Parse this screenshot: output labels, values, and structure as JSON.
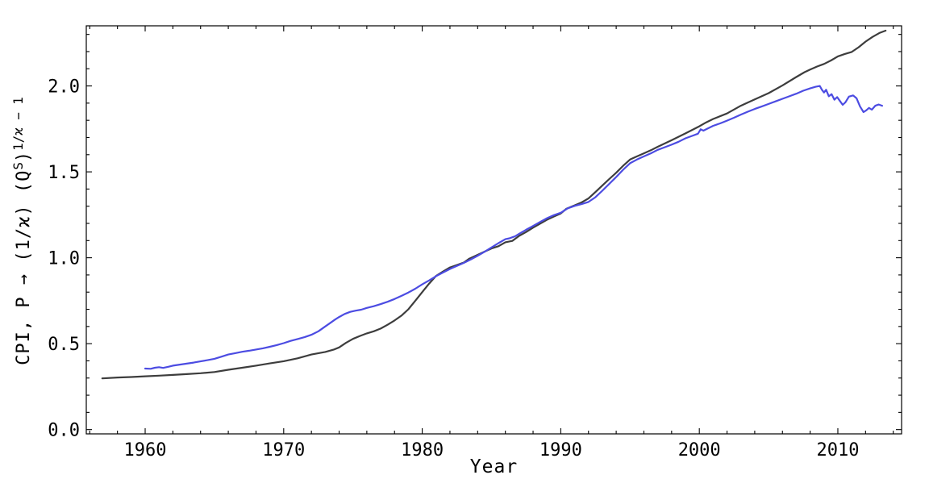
{
  "chart_data": {
    "type": "line",
    "title": "",
    "xlabel": "Year",
    "ylabel": "CPI, P → (1/ϰ) (Q^S)^(1/ϰ − 1)",
    "ylabel_segments": [
      {
        "text": "CPI, P → (1/ϰ) (Q",
        "sup": false
      },
      {
        "text": "S",
        "sup": true
      },
      {
        "text": ")",
        "sup": false
      },
      {
        "text": "1/ϰ − 1",
        "sup": true
      }
    ],
    "xlim": [
      1955.75,
      2014.6
    ],
    "ylim": [
      -0.025,
      2.35
    ],
    "grid": false,
    "legend": "none",
    "frame": true,
    "x_ticks": [
      1960,
      1970,
      1980,
      1990,
      2000,
      2010
    ],
    "x_tick_labels": [
      "1960",
      "1970",
      "1980",
      "1990",
      "2000",
      "2010"
    ],
    "x_minor_step": 2,
    "y_ticks": [
      0.0,
      0.5,
      1.0,
      1.5,
      2.0
    ],
    "y_tick_labels": [
      "0.0",
      "0.5",
      "1.0",
      "1.5",
      "2.0"
    ],
    "y_minor_step": 0.1,
    "axis_color": "#000000",
    "series": [
      {
        "name": "dark-series",
        "color": "#3d3d3d",
        "width": 2.2,
        "points": [
          [
            1956.9,
            0.298
          ],
          [
            1958,
            0.303
          ],
          [
            1959,
            0.306
          ],
          [
            1960,
            0.31
          ],
          [
            1961,
            0.314
          ],
          [
            1962,
            0.318
          ],
          [
            1963,
            0.323
          ],
          [
            1964,
            0.328
          ],
          [
            1965,
            0.335
          ],
          [
            1966,
            0.348
          ],
          [
            1967,
            0.36
          ],
          [
            1968,
            0.372
          ],
          [
            1969,
            0.385
          ],
          [
            1970,
            0.398
          ],
          [
            1971,
            0.415
          ],
          [
            1972,
            0.437
          ],
          [
            1973,
            0.452
          ],
          [
            1973.6,
            0.465
          ],
          [
            1974,
            0.478
          ],
          [
            1974.5,
            0.505
          ],
          [
            1975,
            0.528
          ],
          [
            1975.5,
            0.545
          ],
          [
            1976,
            0.56
          ],
          [
            1976.5,
            0.572
          ],
          [
            1977,
            0.588
          ],
          [
            1977.5,
            0.61
          ],
          [
            1978,
            0.635
          ],
          [
            1978.5,
            0.663
          ],
          [
            1979,
            0.7
          ],
          [
            1979.5,
            0.75
          ],
          [
            1980,
            0.8
          ],
          [
            1980.5,
            0.85
          ],
          [
            1981,
            0.895
          ],
          [
            1981.5,
            0.92
          ],
          [
            1982,
            0.944
          ],
          [
            1982.5,
            0.958
          ],
          [
            1983,
            0.972
          ],
          [
            1983.4,
            0.995
          ],
          [
            1984,
            1.017
          ],
          [
            1984.5,
            1.036
          ],
          [
            1985,
            1.054
          ],
          [
            1985.5,
            1.067
          ],
          [
            1986,
            1.09
          ],
          [
            1986.5,
            1.098
          ],
          [
            1987,
            1.128
          ],
          [
            1987.5,
            1.15
          ],
          [
            1988,
            1.175
          ],
          [
            1988.5,
            1.198
          ],
          [
            1989,
            1.221
          ],
          [
            1989.5,
            1.24
          ],
          [
            1990,
            1.258
          ],
          [
            1990.4,
            1.285
          ],
          [
            1991,
            1.305
          ],
          [
            1991.5,
            1.322
          ],
          [
            1992,
            1.345
          ],
          [
            1992.5,
            1.382
          ],
          [
            1993,
            1.42
          ],
          [
            1993.5,
            1.458
          ],
          [
            1994,
            1.495
          ],
          [
            1994.5,
            1.535
          ],
          [
            1995,
            1.572
          ],
          [
            1995.5,
            1.59
          ],
          [
            1996,
            1.608
          ],
          [
            1996.5,
            1.626
          ],
          [
            1997,
            1.646
          ],
          [
            1998,
            1.684
          ],
          [
            1999,
            1.724
          ],
          [
            2000,
            1.765
          ],
          [
            2000.5,
            1.788
          ],
          [
            2001,
            1.808
          ],
          [
            2002,
            1.84
          ],
          [
            2003,
            1.885
          ],
          [
            2004,
            1.922
          ],
          [
            2005,
            1.958
          ],
          [
            2006,
            2.003
          ],
          [
            2007,
            2.052
          ],
          [
            2007.6,
            2.08
          ],
          [
            2008,
            2.095
          ],
          [
            2008.5,
            2.113
          ],
          [
            2009,
            2.128
          ],
          [
            2009.5,
            2.148
          ],
          [
            2010,
            2.172
          ],
          [
            2010.5,
            2.186
          ],
          [
            2011,
            2.198
          ],
          [
            2011.5,
            2.225
          ],
          [
            2012,
            2.258
          ],
          [
            2012.5,
            2.285
          ],
          [
            2013,
            2.308
          ],
          [
            2013.45,
            2.322
          ]
        ]
      },
      {
        "name": "blue-series",
        "color": "#4c4ce2",
        "width": 2.2,
        "points": [
          [
            1960,
            0.355
          ],
          [
            1960.4,
            0.354
          ],
          [
            1960.7,
            0.36
          ],
          [
            1961,
            0.363
          ],
          [
            1961.3,
            0.359
          ],
          [
            1961.7,
            0.366
          ],
          [
            1962,
            0.372
          ],
          [
            1962.5,
            0.378
          ],
          [
            1963,
            0.384
          ],
          [
            1963.5,
            0.39
          ],
          [
            1964,
            0.397
          ],
          [
            1964.5,
            0.404
          ],
          [
            1965,
            0.412
          ],
          [
            1965.5,
            0.424
          ],
          [
            1966,
            0.437
          ],
          [
            1966.5,
            0.445
          ],
          [
            1967,
            0.453
          ],
          [
            1967.5,
            0.459
          ],
          [
            1968,
            0.466
          ],
          [
            1968.5,
            0.473
          ],
          [
            1969,
            0.482
          ],
          [
            1969.5,
            0.492
          ],
          [
            1970,
            0.503
          ],
          [
            1970.5,
            0.516
          ],
          [
            1971,
            0.527
          ],
          [
            1971.5,
            0.538
          ],
          [
            1972,
            0.552
          ],
          [
            1972.5,
            0.572
          ],
          [
            1973,
            0.6
          ],
          [
            1973.3,
            0.617
          ],
          [
            1973.7,
            0.64
          ],
          [
            1974,
            0.655
          ],
          [
            1974.4,
            0.673
          ],
          [
            1974.8,
            0.685
          ],
          [
            1975.2,
            0.692
          ],
          [
            1975.6,
            0.698
          ],
          [
            1976,
            0.708
          ],
          [
            1976.5,
            0.718
          ],
          [
            1977,
            0.73
          ],
          [
            1977.5,
            0.744
          ],
          [
            1978,
            0.76
          ],
          [
            1978.5,
            0.778
          ],
          [
            1979,
            0.798
          ],
          [
            1979.5,
            0.82
          ],
          [
            1980,
            0.845
          ],
          [
            1980.5,
            0.868
          ],
          [
            1981,
            0.893
          ],
          [
            1981.5,
            0.914
          ],
          [
            1982,
            0.935
          ],
          [
            1982.5,
            0.952
          ],
          [
            1983,
            0.97
          ],
          [
            1983.5,
            0.99
          ],
          [
            1984,
            1.012
          ],
          [
            1984.5,
            1.035
          ],
          [
            1985,
            1.06
          ],
          [
            1985.5,
            1.085
          ],
          [
            1986,
            1.108
          ],
          [
            1986.3,
            1.113
          ],
          [
            1986.7,
            1.125
          ],
          [
            1987,
            1.14
          ],
          [
            1987.5,
            1.163
          ],
          [
            1988,
            1.185
          ],
          [
            1988.5,
            1.208
          ],
          [
            1989,
            1.23
          ],
          [
            1989.5,
            1.248
          ],
          [
            1990,
            1.262
          ],
          [
            1990.5,
            1.288
          ],
          [
            1991,
            1.302
          ],
          [
            1991.5,
            1.312
          ],
          [
            1992,
            1.325
          ],
          [
            1992.5,
            1.352
          ],
          [
            1993,
            1.39
          ],
          [
            1993.5,
            1.43
          ],
          [
            1994,
            1.47
          ],
          [
            1994.5,
            1.512
          ],
          [
            1995,
            1.55
          ],
          [
            1995.5,
            1.572
          ],
          [
            1996,
            1.59
          ],
          [
            1996.5,
            1.608
          ],
          [
            1997,
            1.628
          ],
          [
            1997.5,
            1.643
          ],
          [
            1998,
            1.658
          ],
          [
            1998.5,
            1.675
          ],
          [
            1999,
            1.695
          ],
          [
            1999.5,
            1.71
          ],
          [
            1999.9,
            1.722
          ],
          [
            2000.1,
            1.748
          ],
          [
            2000.3,
            1.74
          ],
          [
            2000.6,
            1.752
          ],
          [
            2001,
            1.768
          ],
          [
            2001.5,
            1.782
          ],
          [
            2002,
            1.798
          ],
          [
            2002.5,
            1.815
          ],
          [
            2003,
            1.833
          ],
          [
            2003.5,
            1.85
          ],
          [
            2004,
            1.866
          ],
          [
            2004.5,
            1.88
          ],
          [
            2005,
            1.895
          ],
          [
            2005.5,
            1.91
          ],
          [
            2006,
            1.925
          ],
          [
            2006.5,
            1.94
          ],
          [
            2007,
            1.955
          ],
          [
            2007.5,
            1.972
          ],
          [
            2008,
            1.986
          ],
          [
            2008.4,
            1.995
          ],
          [
            2008.7,
            2.0
          ],
          [
            2008.85,
            1.978
          ],
          [
            2009.0,
            1.962
          ],
          [
            2009.15,
            1.978
          ],
          [
            2009.35,
            1.94
          ],
          [
            2009.55,
            1.952
          ],
          [
            2009.75,
            1.92
          ],
          [
            2009.95,
            1.935
          ],
          [
            2010.15,
            1.912
          ],
          [
            2010.35,
            1.89
          ],
          [
            2010.55,
            1.905
          ],
          [
            2010.8,
            1.938
          ],
          [
            2011.1,
            1.945
          ],
          [
            2011.35,
            1.928
          ],
          [
            2011.6,
            1.88
          ],
          [
            2011.85,
            1.848
          ],
          [
            2012.05,
            1.858
          ],
          [
            2012.25,
            1.872
          ],
          [
            2012.45,
            1.862
          ],
          [
            2012.7,
            1.885
          ],
          [
            2012.95,
            1.892
          ],
          [
            2013.2,
            1.885
          ]
        ]
      }
    ]
  }
}
